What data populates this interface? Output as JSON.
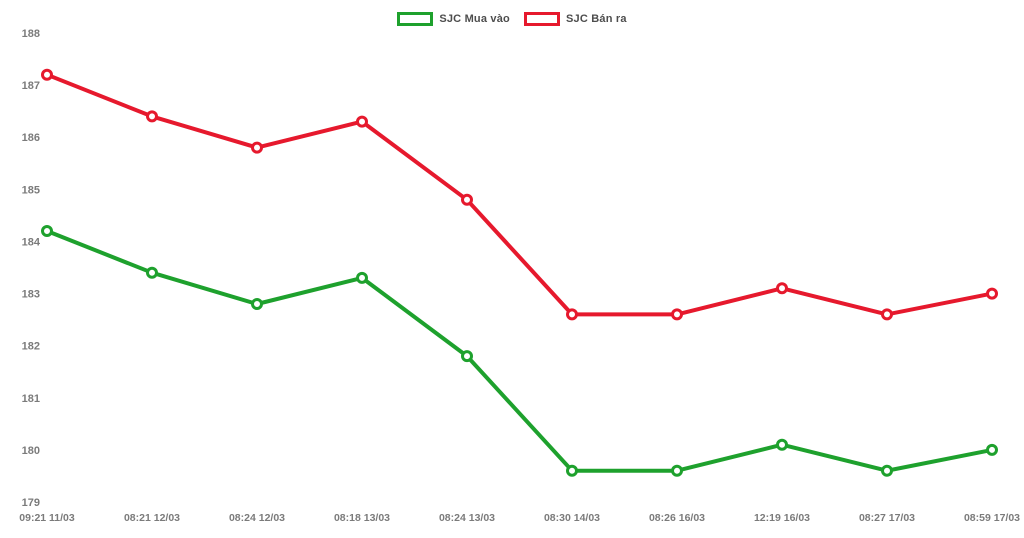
{
  "chart_data": {
    "type": "line",
    "title": "",
    "xlabel": "",
    "ylabel": "",
    "x_labels": [
      "09:21 11/03",
      "08:21 12/03",
      "08:24 12/03",
      "08:18 13/03",
      "08:24 13/03",
      "08:30 14/03",
      "08:26 16/03",
      "12:19 16/03",
      "08:27 17/03",
      "08:59 17/03"
    ],
    "y_ticks": [
      188,
      187,
      186,
      185,
      184,
      183,
      182,
      181,
      180,
      179
    ],
    "ylim": [
      179,
      188
    ],
    "grid": false,
    "legend_position": "top-center",
    "series": [
      {
        "name": "SJC Mua vào",
        "color": "#1ea12d",
        "values": [
          184.2,
          183.4,
          182.8,
          183.3,
          181.8,
          179.6,
          179.6,
          180.1,
          179.6,
          180.0
        ]
      },
      {
        "name": "SJC Bán ra",
        "color": "#e6192d",
        "values": [
          187.2,
          186.4,
          185.8,
          186.3,
          184.8,
          182.6,
          182.6,
          183.1,
          182.6,
          183.0
        ]
      }
    ]
  },
  "colors": {
    "background": "#ffffff",
    "axis_text": "#7b7b7b",
    "legend_text": "#4d4d4d",
    "marker_fill": "#ffffff"
  }
}
